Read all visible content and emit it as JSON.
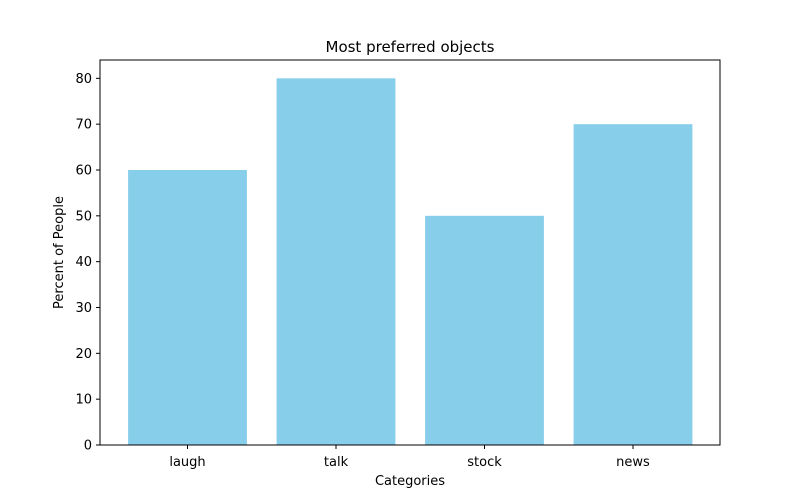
{
  "chart_data": {
    "type": "bar",
    "title": "Most preferred objects",
    "xlabel": "Categories",
    "ylabel": "Percent of People",
    "categories": [
      "laugh",
      "talk",
      "stock",
      "news"
    ],
    "values": [
      60,
      80,
      50,
      70
    ],
    "ylim": [
      0,
      84
    ],
    "yticks": [
      0,
      10,
      20,
      30,
      40,
      50,
      60,
      70,
      80
    ],
    "bar_color": "#87ceeb",
    "grid": false,
    "legend": "none"
  }
}
